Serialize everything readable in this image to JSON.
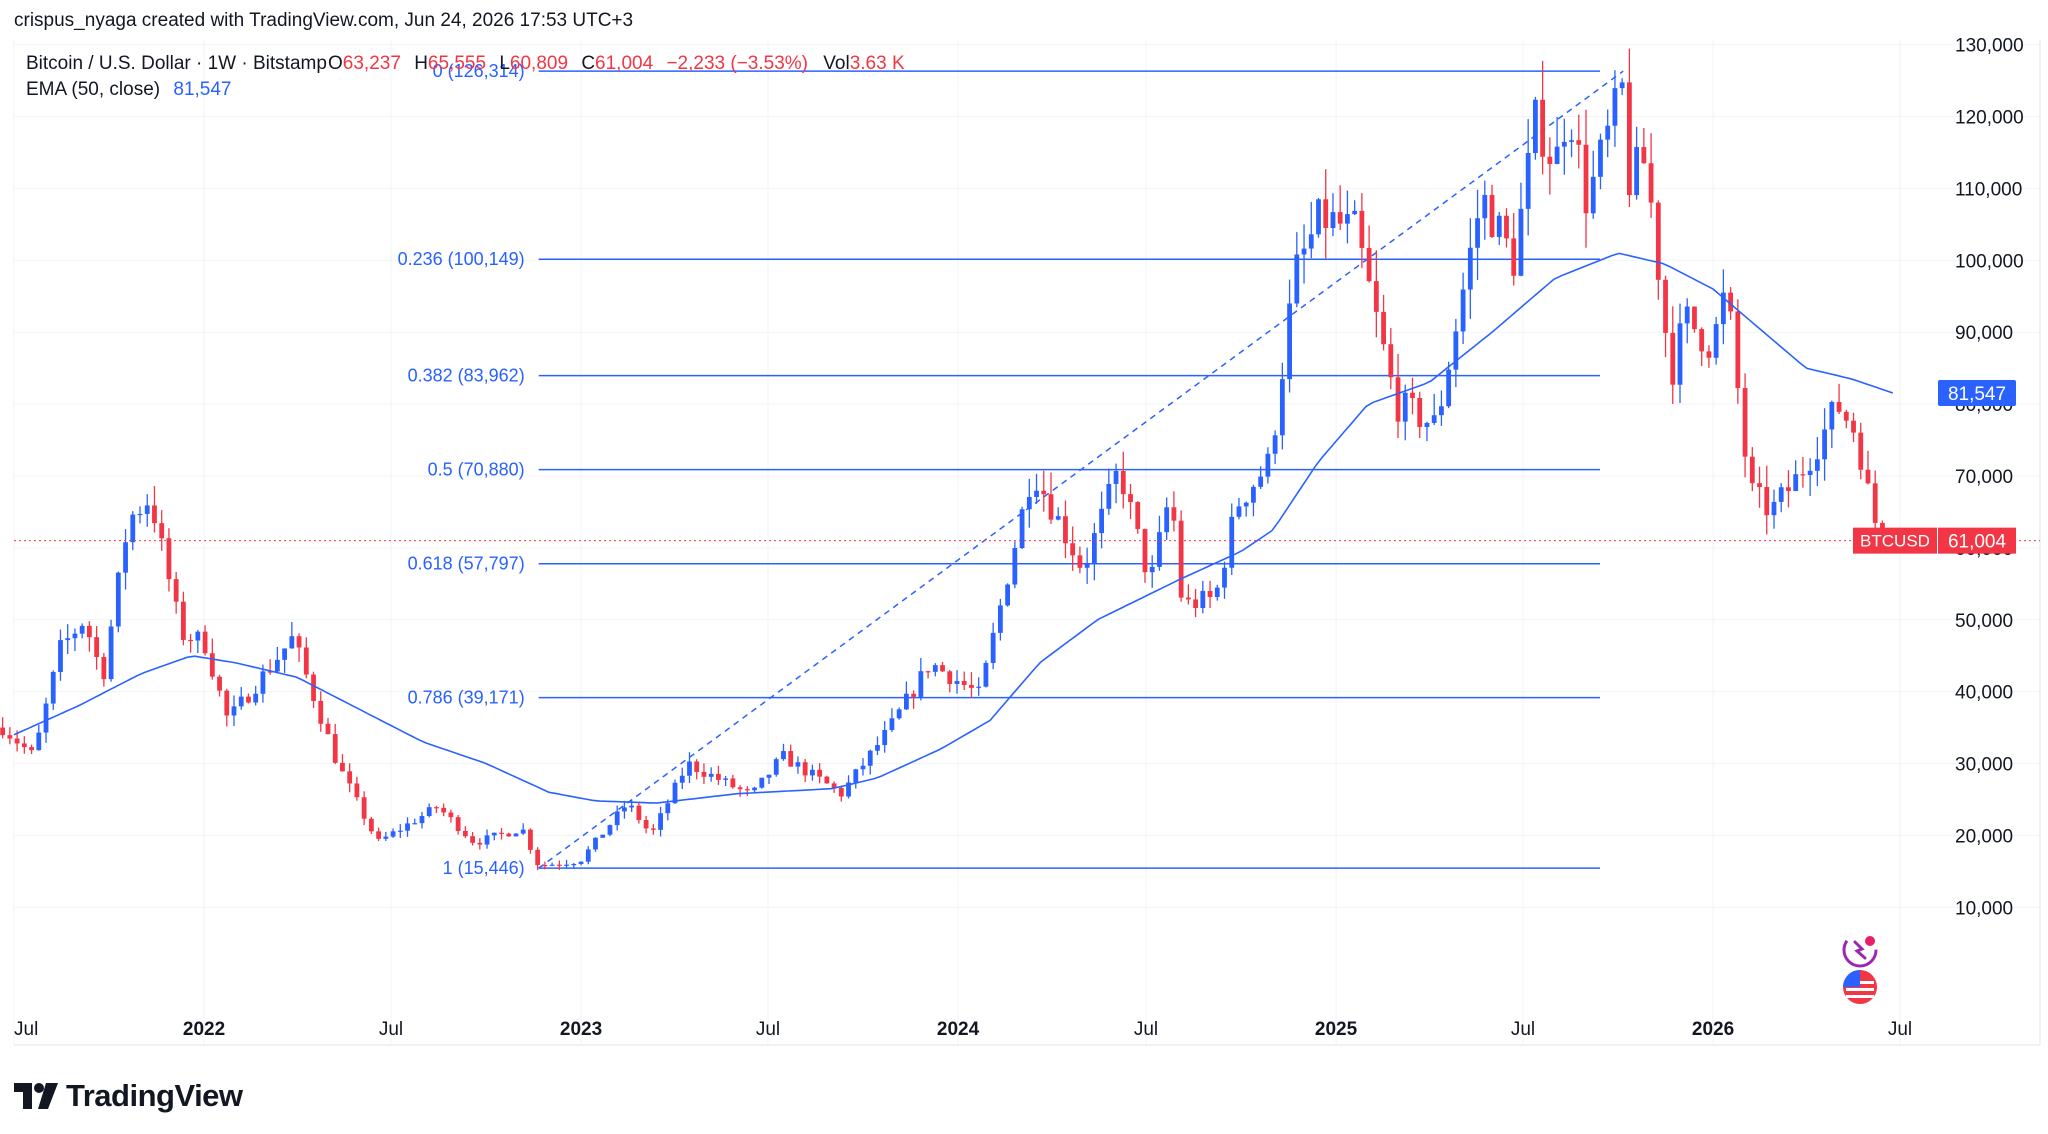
{
  "byline": "crispus_nyaga created with TradingView.com, Jun 24, 2026 17:53 UTC+3",
  "brand": "TradingView",
  "colors": {
    "up": "#2962ff",
    "down": "#f23645",
    "ema": "#2962ff",
    "fib": "#2962ff",
    "text": "#131722",
    "grid": "#f0f3fa"
  },
  "icons": [
    "tradingview-logo-icon",
    "sparkle-icon",
    "us-flag-icon"
  ],
  "legend": {
    "symbol": "Bitcoin / U.S. Dollar · 1W · Bitstamp",
    "o_label": "O",
    "o_value": "63,237",
    "h_label": "H",
    "h_value": "65,555",
    "l_label": "L",
    "l_value": "60,809",
    "c_label": "C",
    "c_value": "61,004",
    "change": "−2,233 (−3.53%)",
    "vol_label": "Vol",
    "vol_value": "3.63 K",
    "ema_label": "EMA (50, close)",
    "ema_value": "81,547"
  },
  "chart_data": {
    "type": "candlestick",
    "y_axis": {
      "min": 0,
      "max": 135000,
      "ticks": [
        "10,000",
        "20,000",
        "30,000",
        "40,000",
        "50,000",
        "60,000",
        "70,000",
        "80,000",
        "90,000",
        "100,000",
        "110,000",
        "120,000",
        "130,000"
      ]
    },
    "x_axis": {
      "start": "2021-07-01",
      "end": "2026-07-01",
      "ticks": [
        {
          "date": "2021-07-01",
          "label": "Jul",
          "bold": false
        },
        {
          "date": "2022-01-01",
          "label": "2022",
          "bold": true
        },
        {
          "date": "2022-07-01",
          "label": "Jul",
          "bold": false
        },
        {
          "date": "2023-01-01",
          "label": "2023",
          "bold": true
        },
        {
          "date": "2023-07-01",
          "label": "Jul",
          "bold": false
        },
        {
          "date": "2024-01-01",
          "label": "2024",
          "bold": true
        },
        {
          "date": "2024-07-01",
          "label": "Jul",
          "bold": false
        },
        {
          "date": "2025-01-01",
          "label": "2025",
          "bold": true
        },
        {
          "date": "2025-07-01",
          "label": "Jul",
          "bold": false
        },
        {
          "date": "2026-01-01",
          "label": "2026",
          "bold": true
        },
        {
          "date": "2026-07-01",
          "label": "Jul",
          "bold": false
        }
      ]
    },
    "price_anchors": [
      [
        "2021-06-20",
        35000
      ],
      [
        "2021-07-20",
        31000
      ],
      [
        "2021-08-15",
        46000
      ],
      [
        "2021-09-07",
        50000
      ],
      [
        "2021-09-25",
        42000
      ],
      [
        "2021-10-20",
        64000
      ],
      [
        "2021-11-10",
        67000
      ],
      [
        "2021-12-10",
        48000
      ],
      [
        "2022-01-01",
        47000
      ],
      [
        "2022-01-24",
        36000
      ],
      [
        "2022-03-28",
        47500
      ],
      [
        "2022-05-10",
        30000
      ],
      [
        "2022-06-18",
        19000
      ],
      [
        "2022-08-15",
        24000
      ],
      [
        "2022-09-20",
        19000
      ],
      [
        "2022-11-05",
        21000
      ],
      [
        "2022-11-21",
        15800
      ],
      [
        "2022-12-31",
        16500
      ],
      [
        "2023-02-15",
        24500
      ],
      [
        "2023-03-10",
        20000
      ],
      [
        "2023-04-14",
        30000
      ],
      [
        "2023-06-15",
        25500
      ],
      [
        "2023-07-15",
        31000
      ],
      [
        "2023-09-10",
        25800
      ],
      [
        "2023-10-25",
        34500
      ],
      [
        "2023-12-05",
        44000
      ],
      [
        "2024-01-22",
        39500
      ],
      [
        "2024-03-13",
        71000
      ],
      [
        "2024-05-01",
        57000
      ],
      [
        "2024-06-05",
        71000
      ],
      [
        "2024-07-05",
        55000
      ],
      [
        "2024-07-25",
        68000
      ],
      [
        "2024-08-05",
        52000
      ],
      [
        "2024-09-06",
        53000
      ],
      [
        "2024-09-27",
        66000
      ],
      [
        "2024-10-29",
        72000
      ],
      [
        "2024-11-22",
        98000
      ],
      [
        "2024-12-17",
        106000
      ],
      [
        "2025-01-20",
        104000
      ],
      [
        "2025-02-28",
        80000
      ],
      [
        "2025-04-08",
        77000
      ],
      [
        "2025-05-22",
        109000
      ],
      [
        "2025-06-22",
        100000
      ],
      [
        "2025-07-14",
        120000
      ],
      [
        "2025-08-01",
        113000
      ],
      [
        "2025-08-14",
        122000
      ],
      [
        "2025-09-01",
        108000
      ],
      [
        "2025-09-18",
        116000
      ],
      [
        "2025-10-06",
        124000
      ],
      [
        "2025-10-11",
        111000
      ],
      [
        "2025-10-28",
        114000
      ],
      [
        "2025-11-21",
        84000
      ],
      [
        "2025-12-05",
        92000
      ],
      [
        "2025-12-31",
        88000
      ],
      [
        "2026-01-14",
        96000
      ],
      [
        "2026-02-05",
        68000
      ],
      [
        "2026-02-26",
        65000
      ],
      [
        "2026-03-25",
        70000
      ],
      [
        "2026-04-22",
        77000
      ],
      [
        "2026-05-01",
        80000
      ],
      [
        "2026-05-20",
        76000
      ],
      [
        "2026-06-05",
        64000
      ],
      [
        "2026-06-24",
        61004
      ]
    ],
    "ema_anchors": [
      [
        "2021-07-01",
        34000
      ],
      [
        "2021-09-01",
        38000
      ],
      [
        "2021-11-01",
        42500
      ],
      [
        "2021-12-20",
        45000
      ],
      [
        "2022-02-01",
        44000
      ],
      [
        "2022-04-01",
        42000
      ],
      [
        "2022-06-01",
        37500
      ],
      [
        "2022-08-01",
        33000
      ],
      [
        "2022-10-01",
        30000
      ],
      [
        "2022-12-01",
        26000
      ],
      [
        "2023-01-15",
        24800
      ],
      [
        "2023-03-15",
        24500
      ],
      [
        "2023-06-01",
        25800
      ],
      [
        "2023-09-01",
        26500
      ],
      [
        "2023-10-15",
        28000
      ],
      [
        "2023-12-15",
        32000
      ],
      [
        "2024-02-01",
        36000
      ],
      [
        "2024-03-20",
        44000
      ],
      [
        "2024-05-15",
        50000
      ],
      [
        "2024-08-01",
        55500
      ],
      [
        "2024-10-01",
        59500
      ],
      [
        "2024-11-01",
        62500
      ],
      [
        "2024-12-15",
        72000
      ],
      [
        "2025-02-01",
        80000
      ],
      [
        "2025-04-01",
        83000
      ],
      [
        "2025-06-01",
        90000
      ],
      [
        "2025-08-01",
        97500
      ],
      [
        "2025-10-01",
        101000
      ],
      [
        "2025-11-15",
        99500
      ],
      [
        "2026-01-01",
        96000
      ],
      [
        "2026-02-15",
        90500
      ],
      [
        "2026-04-01",
        85000
      ],
      [
        "2026-05-15",
        83500
      ],
      [
        "2026-06-24",
        81547
      ]
    ],
    "current_price": {
      "value": 61004,
      "label": "BTCUSD",
      "value_label": "61,004"
    },
    "ema_label": {
      "value": 81547,
      "value_label": "81,547"
    },
    "fib": {
      "start": "2022-11-21",
      "end": "2025-10-06",
      "levels": [
        {
          "ratio": "0",
          "price": 126314,
          "label": "0 (126,314)"
        },
        {
          "ratio": "0.236",
          "price": 100149,
          "label": "0.236 (100,149)"
        },
        {
          "ratio": "0.382",
          "price": 83962,
          "label": "0.382 (83,962)"
        },
        {
          "ratio": "0.5",
          "price": 70880,
          "label": "0.5 (70,880)"
        },
        {
          "ratio": "0.618",
          "price": 57797,
          "label": "0.618 (57,797)"
        },
        {
          "ratio": "0.786",
          "price": 39171,
          "label": "0.786 (39,171)"
        },
        {
          "ratio": "1",
          "price": 15446,
          "label": "1 (15,446)"
        }
      ]
    }
  }
}
